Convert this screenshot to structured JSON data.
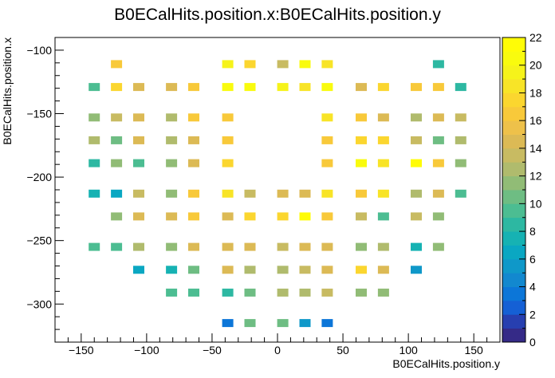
{
  "chart_data": {
    "type": "heatmap",
    "title": "B0ECalHits.position.x:B0ECalHits.position.y",
    "xlabel": "B0ECalHits.position.y",
    "ylabel": "B0ECalHits.position.x",
    "xlim": [
      -170,
      170
    ],
    "ylim": [
      -330,
      -90
    ],
    "x_ticks": [
      -150,
      -100,
      -50,
      0,
      50,
      100,
      150
    ],
    "x_tick_labels": [
      "−150",
      "−100",
      "−50",
      "0",
      "50",
      "100",
      "150"
    ],
    "y_ticks": [
      -100,
      -150,
      -200,
      -250,
      -300
    ],
    "y_tick_labels": [
      "−100",
      "−150",
      "−200",
      "−250",
      "−300"
    ],
    "colorbar": {
      "min": 0,
      "max": 22,
      "ticks": [
        0,
        2,
        4,
        6,
        8,
        10,
        12,
        14,
        16,
        18,
        20,
        22
      ]
    },
    "grid": false,
    "palette": [
      "#352a87",
      "#273fb0",
      "#1560d5",
      "#0c76d8",
      "#1288cf",
      "#0f98c9",
      "#0aa7c2",
      "#16b2b3",
      "#2db8a2",
      "#4cbd92",
      "#6ebd83",
      "#91bc76",
      "#b0bb6d",
      "#c8bb62",
      "#dcba55",
      "#eec14a",
      "#f8c93a",
      "#fbd62f",
      "#f8e427",
      "#f6f31a",
      "#f9fb0e",
      "#fffc06"
    ],
    "bins": [
      {
        "x": -123,
        "y": -111,
        "value": 16
      },
      {
        "x": -38,
        "y": -111,
        "value": 19
      },
      {
        "x": -21,
        "y": -111,
        "value": 17
      },
      {
        "x": 4,
        "y": -111,
        "value": 13
      },
      {
        "x": 21,
        "y": -111,
        "value": 20
      },
      {
        "x": 38,
        "y": -111,
        "value": 18
      },
      {
        "x": 123,
        "y": -111,
        "value": 8
      },
      {
        "x": -140,
        "y": -129,
        "value": 9
      },
      {
        "x": -123,
        "y": -129,
        "value": 17
      },
      {
        "x": -106,
        "y": -129,
        "value": 15
      },
      {
        "x": -81,
        "y": -129,
        "value": 14
      },
      {
        "x": -64,
        "y": -129,
        "value": 16
      },
      {
        "x": -38,
        "y": -129,
        "value": 20
      },
      {
        "x": -21,
        "y": -129,
        "value": 20
      },
      {
        "x": 4,
        "y": -129,
        "value": 19
      },
      {
        "x": 21,
        "y": -129,
        "value": 18
      },
      {
        "x": 38,
        "y": -129,
        "value": 20
      },
      {
        "x": 64,
        "y": -129,
        "value": 15
      },
      {
        "x": 81,
        "y": -129,
        "value": 17
      },
      {
        "x": 106,
        "y": -129,
        "value": 16
      },
      {
        "x": 123,
        "y": -129,
        "value": 16
      },
      {
        "x": 140,
        "y": -129,
        "value": 8
      },
      {
        "x": -140,
        "y": -153,
        "value": 11
      },
      {
        "x": -123,
        "y": -153,
        "value": 13
      },
      {
        "x": -106,
        "y": -153,
        "value": 15
      },
      {
        "x": -81,
        "y": -153,
        "value": 12
      },
      {
        "x": -64,
        "y": -153,
        "value": 16
      },
      {
        "x": -38,
        "y": -153,
        "value": 16
      },
      {
        "x": 38,
        "y": -153,
        "value": 18
      },
      {
        "x": 64,
        "y": -153,
        "value": 16
      },
      {
        "x": 81,
        "y": -153,
        "value": 15
      },
      {
        "x": 106,
        "y": -153,
        "value": 12
      },
      {
        "x": 123,
        "y": -153,
        "value": 15
      },
      {
        "x": 140,
        "y": -153,
        "value": 13
      },
      {
        "x": -140,
        "y": -171,
        "value": 12
      },
      {
        "x": -123,
        "y": -171,
        "value": 10
      },
      {
        "x": -106,
        "y": -171,
        "value": 14
      },
      {
        "x": -81,
        "y": -171,
        "value": 12
      },
      {
        "x": -64,
        "y": -171,
        "value": 15
      },
      {
        "x": -38,
        "y": -171,
        "value": 16
      },
      {
        "x": 38,
        "y": -171,
        "value": 16
      },
      {
        "x": 64,
        "y": -171,
        "value": 17
      },
      {
        "x": 81,
        "y": -171,
        "value": 17
      },
      {
        "x": 106,
        "y": -171,
        "value": 13
      },
      {
        "x": 123,
        "y": -171,
        "value": 10
      },
      {
        "x": 140,
        "y": -171,
        "value": 12
      },
      {
        "x": -140,
        "y": -189,
        "value": 8
      },
      {
        "x": -123,
        "y": -189,
        "value": 11
      },
      {
        "x": -106,
        "y": -189,
        "value": 9
      },
      {
        "x": -81,
        "y": -189,
        "value": 11
      },
      {
        "x": -64,
        "y": -189,
        "value": 15
      },
      {
        "x": -38,
        "y": -189,
        "value": 17
      },
      {
        "x": 38,
        "y": -189,
        "value": 16
      },
      {
        "x": 64,
        "y": -189,
        "value": 20
      },
      {
        "x": 81,
        "y": -189,
        "value": 18
      },
      {
        "x": 106,
        "y": -189,
        "value": 21
      },
      {
        "x": 123,
        "y": -189,
        "value": 16
      },
      {
        "x": 140,
        "y": -189,
        "value": 11
      },
      {
        "x": -140,
        "y": -213,
        "value": 7
      },
      {
        "x": -123,
        "y": -213,
        "value": 6
      },
      {
        "x": -106,
        "y": -213,
        "value": 13
      },
      {
        "x": -81,
        "y": -213,
        "value": 11
      },
      {
        "x": -64,
        "y": -213,
        "value": 16
      },
      {
        "x": -38,
        "y": -213,
        "value": 18
      },
      {
        "x": -21,
        "y": -213,
        "value": 13
      },
      {
        "x": 4,
        "y": -213,
        "value": 15
      },
      {
        "x": 21,
        "y": -213,
        "value": 14
      },
      {
        "x": 38,
        "y": -213,
        "value": 18
      },
      {
        "x": 64,
        "y": -213,
        "value": 16
      },
      {
        "x": 81,
        "y": -213,
        "value": 18
      },
      {
        "x": 106,
        "y": -213,
        "value": 12
      },
      {
        "x": 123,
        "y": -213,
        "value": 14
      },
      {
        "x": 140,
        "y": -213,
        "value": 9
      },
      {
        "x": -123,
        "y": -231,
        "value": 11
      },
      {
        "x": -106,
        "y": -231,
        "value": 14
      },
      {
        "x": -81,
        "y": -231,
        "value": 15
      },
      {
        "x": -64,
        "y": -231,
        "value": 16
      },
      {
        "x": -38,
        "y": -231,
        "value": 14
      },
      {
        "x": -21,
        "y": -231,
        "value": 17
      },
      {
        "x": 4,
        "y": -231,
        "value": 17
      },
      {
        "x": 21,
        "y": -231,
        "value": 21
      },
      {
        "x": 38,
        "y": -231,
        "value": 16
      },
      {
        "x": 64,
        "y": -231,
        "value": 13
      },
      {
        "x": 81,
        "y": -231,
        "value": 9
      },
      {
        "x": 106,
        "y": -231,
        "value": 13
      },
      {
        "x": 123,
        "y": -231,
        "value": 11
      },
      {
        "x": -140,
        "y": -255,
        "value": 9
      },
      {
        "x": -123,
        "y": -255,
        "value": 9
      },
      {
        "x": -106,
        "y": -255,
        "value": 12
      },
      {
        "x": -81,
        "y": -255,
        "value": 11
      },
      {
        "x": -64,
        "y": -255,
        "value": 14
      },
      {
        "x": -38,
        "y": -255,
        "value": 15
      },
      {
        "x": -21,
        "y": -255,
        "value": 15
      },
      {
        "x": 4,
        "y": -255,
        "value": 13
      },
      {
        "x": 21,
        "y": -255,
        "value": 14
      },
      {
        "x": 38,
        "y": -255,
        "value": 15
      },
      {
        "x": 64,
        "y": -255,
        "value": 11
      },
      {
        "x": 81,
        "y": -255,
        "value": 12
      },
      {
        "x": 106,
        "y": -255,
        "value": 7
      },
      {
        "x": 123,
        "y": -255,
        "value": 11
      },
      {
        "x": -106,
        "y": -273,
        "value": 6
      },
      {
        "x": -81,
        "y": -273,
        "value": 7
      },
      {
        "x": -64,
        "y": -273,
        "value": 10
      },
      {
        "x": -38,
        "y": -273,
        "value": 15
      },
      {
        "x": -21,
        "y": -273,
        "value": 12
      },
      {
        "x": 4,
        "y": -273,
        "value": 12
      },
      {
        "x": 21,
        "y": -273,
        "value": 13
      },
      {
        "x": 38,
        "y": -273,
        "value": 15
      },
      {
        "x": 64,
        "y": -273,
        "value": 17
      },
      {
        "x": 81,
        "y": -273,
        "value": 15
      },
      {
        "x": 106,
        "y": -273,
        "value": 5
      },
      {
        "x": -81,
        "y": -291,
        "value": 9
      },
      {
        "x": -64,
        "y": -291,
        "value": 9
      },
      {
        "x": -38,
        "y": -291,
        "value": 8
      },
      {
        "x": -21,
        "y": -291,
        "value": 10
      },
      {
        "x": 4,
        "y": -291,
        "value": 12
      },
      {
        "x": 21,
        "y": -291,
        "value": 12
      },
      {
        "x": 38,
        "y": -291,
        "value": 13
      },
      {
        "x": 64,
        "y": -291,
        "value": 11
      },
      {
        "x": 81,
        "y": -291,
        "value": 11
      },
      {
        "x": -38,
        "y": -315,
        "value": 3
      },
      {
        "x": -21,
        "y": -315,
        "value": 10
      },
      {
        "x": 4,
        "y": -315,
        "value": 10
      },
      {
        "x": 21,
        "y": -315,
        "value": 5
      },
      {
        "x": 38,
        "y": -315,
        "value": 3
      }
    ]
  }
}
